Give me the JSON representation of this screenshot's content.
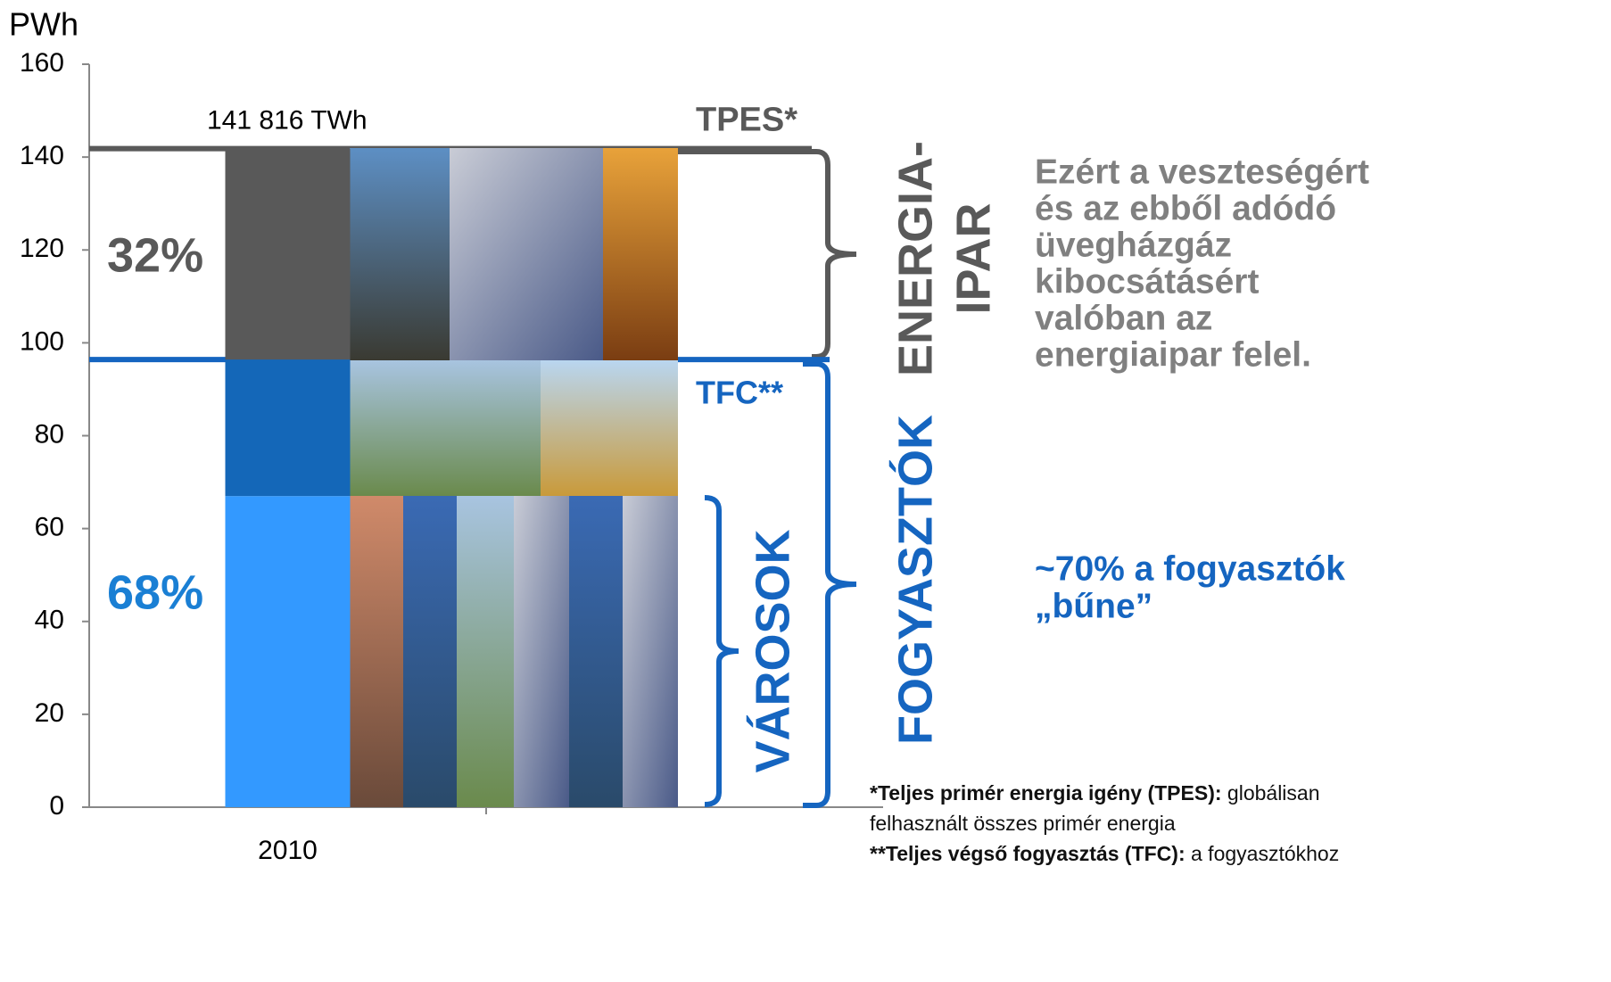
{
  "chart_data": {
    "type": "bar",
    "stacked": true,
    "y_label": "PWh",
    "categories": [
      "2010",
      null
    ],
    "series": [
      {
        "color": "#3399ff",
        "values": [
          67,
          null
        ]
      },
      {
        "color": "#1467b8",
        "values": [
          29.4,
          null
        ]
      },
      {
        "color": "#595959",
        "values": [
          45.4,
          null
        ]
      }
    ],
    "total": 141.816,
    "total_label": "141 816 TWh",
    "ylim": [
      0,
      160
    ],
    "yticks": [
      0,
      20,
      40,
      60,
      80,
      100,
      120,
      140,
      160
    ],
    "reference_lines": [
      {
        "value": 141.816,
        "color": "#595959",
        "label": "TPES*"
      },
      {
        "value": 96.4,
        "color": "#1565c0",
        "label": "TFC**"
      }
    ],
    "share_labels": [
      {
        "value": 68,
        "label": "68%",
        "color": "#1a7fd4"
      },
      {
        "value": 32,
        "label": "32%",
        "color": "#595959"
      }
    ],
    "brackets": [
      {
        "lines": [
          "ENERGIA-",
          "IPAR"
        ],
        "color": "#595959"
      },
      {
        "lines": [
          "FOGYASZTÓK"
        ],
        "color": "#1565c0"
      },
      {
        "lines": [
          "VÁROSOK"
        ],
        "color": "#1565c0"
      }
    ],
    "notes": [
      {
        "lines": [
          "Ezért a veszteségért",
          "és az ebből adódó",
          "üvegházgáz",
          "kibocsátásért",
          "valóban az",
          "energiaipar felel."
        ],
        "color": "#808080"
      },
      {
        "lines": [
          "~70% a fogyasztók",
          "„bűne”"
        ],
        "color": "#1565c0"
      }
    ],
    "footnote": [
      {
        "bold": "*Teljes primér energia igény (TPES):",
        "text": " globálisan"
      },
      {
        "bold": null,
        "text": "felhasznált összes primér energia"
      },
      {
        "bold": "**Teljes végső fogyasztás (TFC):",
        "text": " a fogyasztókhoz"
      }
    ]
  }
}
